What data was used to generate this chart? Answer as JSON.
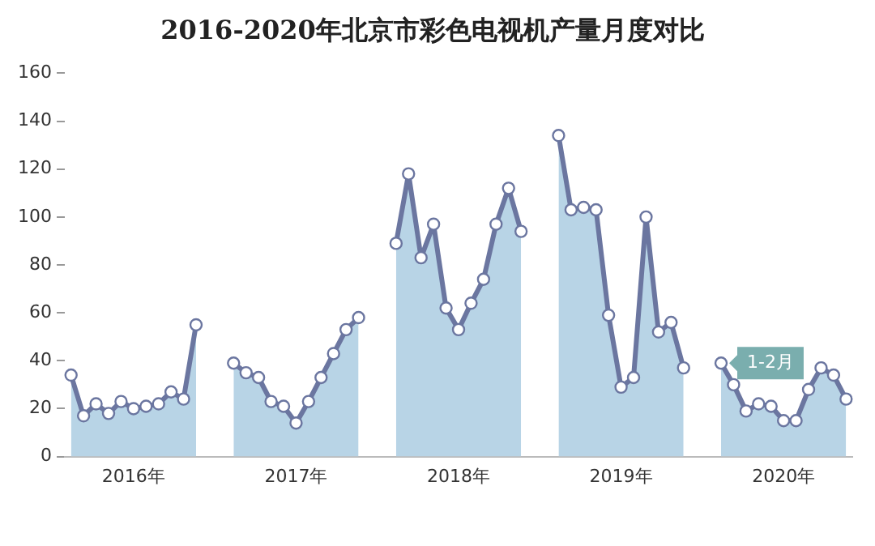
{
  "chart_data": {
    "type": "area",
    "title": "2016-2020年北京市彩色电视机产量月度对比",
    "categories": [
      null,
      null,
      null,
      null,
      null,
      "2016年",
      null,
      null,
      null,
      null,
      null,
      null,
      null,
      null,
      null,
      null,
      null,
      null,
      "2017年",
      null,
      null,
      null,
      null,
      null,
      null,
      null,
      null,
      null,
      null,
      null,
      null,
      "2018年",
      null,
      null,
      null,
      null,
      null,
      null,
      null,
      null,
      null,
      null,
      null,
      null,
      "2019年",
      null,
      null,
      null,
      null,
      null,
      null,
      null,
      null,
      null,
      null,
      null,
      null,
      "2020年",
      null,
      null,
      null,
      null,
      null
    ],
    "series": [
      {
        "color": "#6b76a0",
        "values": [
          34,
          17,
          22,
          18,
          23,
          20,
          21,
          22,
          27,
          24,
          55,
          null,
          null,
          39,
          35,
          33,
          23,
          21,
          14,
          23,
          33,
          43,
          53,
          58,
          null,
          null,
          89,
          118,
          83,
          97,
          62,
          53,
          64,
          74,
          97,
          112,
          94,
          null,
          null,
          134,
          103,
          104,
          103,
          59,
          29,
          33,
          100,
          52,
          56,
          37,
          null,
          null,
          39,
          30,
          19,
          22,
          21,
          15,
          15,
          28,
          37,
          34,
          24
        ]
      }
    ],
    "ylim": [
      0,
      160
    ],
    "yticks": [
      0,
      20,
      40,
      60,
      80,
      100,
      120,
      140,
      160
    ],
    "grid": false,
    "legend": false,
    "marker": "circle",
    "annotations": [
      "1-2月"
    ]
  }
}
